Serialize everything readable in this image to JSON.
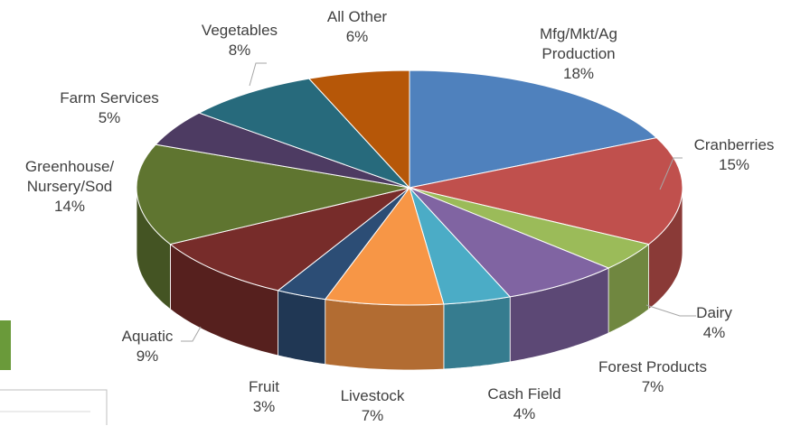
{
  "chart_data": {
    "type": "pie",
    "categories": [
      "Mfg/Mkt/Ag\nProduction",
      "Cranberries",
      "Dairy",
      "Forest Products",
      "Cash Field",
      "Livestock",
      "Fruit",
      "Aquatic",
      "Greenhouse/\nNursery/Sod",
      "Farm Services",
      "Vegetables",
      "All Other"
    ],
    "values": [
      18,
      15,
      4,
      7,
      4,
      7,
      3,
      9,
      14,
      5,
      8,
      6
    ],
    "value_labels": [
      "18%",
      "15%",
      "4%",
      "7%",
      "4%",
      "7%",
      "3%",
      "9%",
      "14%",
      "5%",
      "8%",
      "6%"
    ],
    "colors": [
      "#4f81bd",
      "#c0504d",
      "#9bbb59",
      "#8064a2",
      "#4bacc6",
      "#f79646",
      "#2c4d75",
      "#772c2a",
      "#5f7530",
      "#4d3b62",
      "#276a7c",
      "#b65708"
    ]
  }
}
